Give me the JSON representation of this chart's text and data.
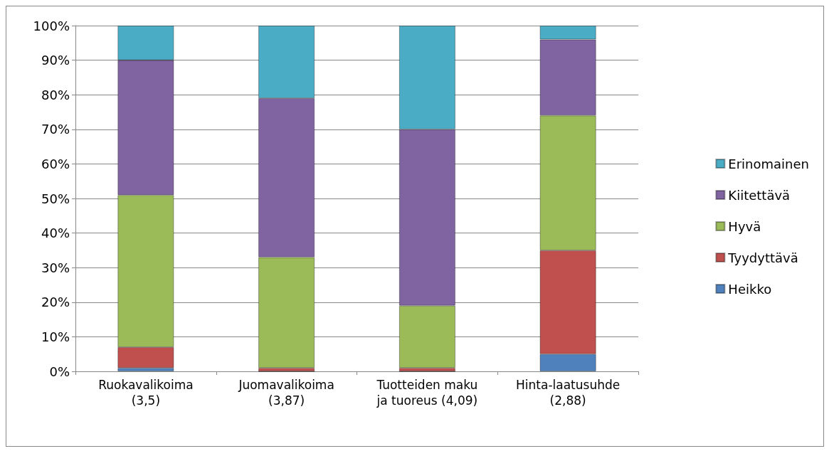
{
  "chart_data": {
    "type": "bar",
    "stacked": true,
    "categories": [
      "Ruokavalikoima\n(3,5)",
      "Juomavalikoima\n(3,87)",
      "Tuotteiden maku\nja tuoreus (4,09)",
      "Hinta-laatusuhde\n(2,88)"
    ],
    "series": [
      {
        "name": "Heikko",
        "color": "#4f81bd",
        "values": [
          1,
          0,
          0,
          5
        ]
      },
      {
        "name": "Tyydyttävä",
        "color": "#c0504d",
        "values": [
          6,
          1,
          1,
          30
        ]
      },
      {
        "name": "Hyvä",
        "color": "#9bbb59",
        "values": [
          44,
          32,
          18,
          39
        ]
      },
      {
        "name": "Kiitettävä",
        "color": "#8064a2",
        "values": [
          39,
          46,
          51,
          22
        ]
      },
      {
        "name": "Erinomainen",
        "color": "#4bacc6",
        "values": [
          10,
          21,
          30,
          4
        ]
      }
    ],
    "ylim": [
      0,
      100
    ],
    "yticks": [
      {
        "value": 0,
        "label": "0%"
      },
      {
        "value": 10,
        "label": "10%"
      },
      {
        "value": 20,
        "label": "20%"
      },
      {
        "value": 30,
        "label": "30%"
      },
      {
        "value": 40,
        "label": "40%"
      },
      {
        "value": 50,
        "label": "50%"
      },
      {
        "value": 60,
        "label": "60%"
      },
      {
        "value": 70,
        "label": "70%"
      },
      {
        "value": 80,
        "label": "80%"
      },
      {
        "value": 90,
        "label": "90%"
      },
      {
        "value": 100,
        "label": "100%"
      }
    ],
    "grid": "y",
    "legend": "right"
  }
}
